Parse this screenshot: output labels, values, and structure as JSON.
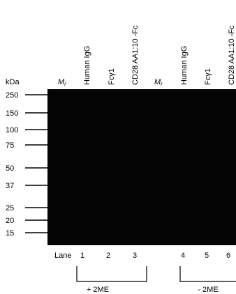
{
  "columns": [
    {
      "label": "M",
      "subscript": "r"
    },
    {
      "label": "Human IgG"
    },
    {
      "label": "Fcγ1"
    },
    {
      "label": "CD28 AA1:10 -Fc"
    },
    {
      "label": "M",
      "subscript": "r"
    },
    {
      "label": "Human IgG"
    },
    {
      "label": "Fcγ1"
    },
    {
      "label": "CD28 AA1:10 -Fc"
    }
  ],
  "markers": {
    "unit": "kDa",
    "sizes": [
      "250",
      "150",
      "100",
      "75",
      "50",
      "37",
      "25",
      "20",
      "15"
    ]
  },
  "lanes": {
    "label": "Lane",
    "numbers": [
      "1",
      "2",
      "3",
      "4",
      "5",
      "6"
    ]
  },
  "groups": [
    "+ 2ME",
    "- 2ME"
  ]
}
